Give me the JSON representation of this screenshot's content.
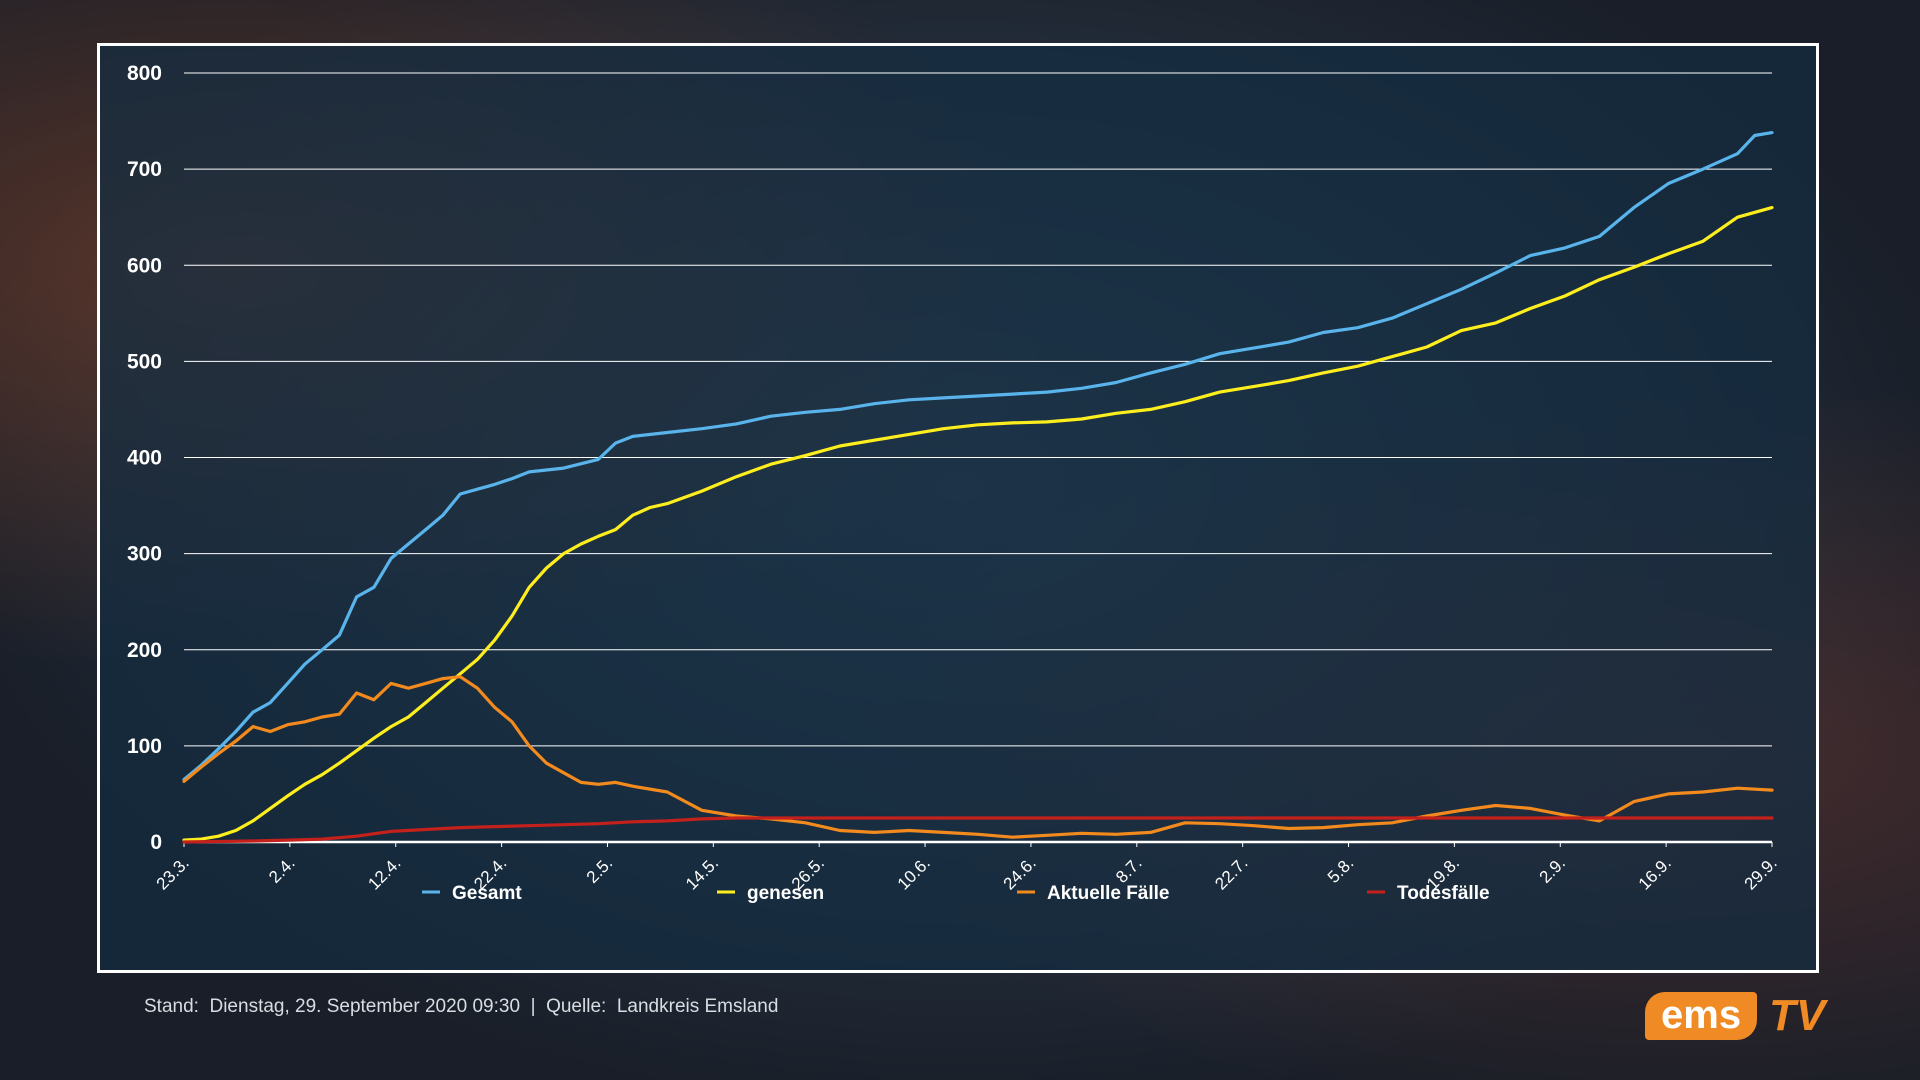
{
  "chart_data": {
    "type": "line",
    "title": "",
    "xlabel": "",
    "ylabel": "",
    "ylim": [
      0,
      800
    ],
    "y_ticks": [
      0,
      100,
      200,
      300,
      400,
      500,
      600,
      700,
      800
    ],
    "x_tick_labels": [
      "23.3.",
      "2.4.",
      "12.4.",
      "22.4.",
      "2.5.",
      "14.5.",
      "26.5.",
      "10.6.",
      "24.6.",
      "8.7.",
      "22.7.",
      "5.8.",
      "19.8.",
      "2.9.",
      "16.9.",
      "29.9."
    ],
    "grid": "horizontal",
    "legend_position": "bottom",
    "series": [
      {
        "name": "Gesamt",
        "color": "#5ab4ec",
        "values": [
          [
            0,
            65
          ],
          [
            0.5,
            80
          ],
          [
            1,
            97
          ],
          [
            1.5,
            115
          ],
          [
            2,
            135
          ],
          [
            2.5,
            145
          ],
          [
            3,
            165
          ],
          [
            3.5,
            185
          ],
          [
            4,
            200
          ],
          [
            4.5,
            215
          ],
          [
            5,
            255
          ],
          [
            5.5,
            265
          ],
          [
            6,
            295
          ],
          [
            6.5,
            310
          ],
          [
            7,
            325
          ],
          [
            7.5,
            340
          ],
          [
            8,
            362
          ],
          [
            8.5,
            367
          ],
          [
            9,
            372
          ],
          [
            9.5,
            378
          ],
          [
            10,
            385
          ],
          [
            11,
            389
          ],
          [
            12,
            398
          ],
          [
            12.5,
            415
          ],
          [
            13,
            422
          ],
          [
            14,
            426
          ],
          [
            15,
            430
          ],
          [
            16,
            435
          ],
          [
            17,
            443
          ],
          [
            18,
            447
          ],
          [
            19,
            450
          ],
          [
            20,
            456
          ],
          [
            21,
            460
          ],
          [
            22,
            462
          ],
          [
            23,
            464
          ],
          [
            24,
            466
          ],
          [
            25,
            468
          ],
          [
            26,
            472
          ],
          [
            27,
            478
          ],
          [
            28,
            488
          ],
          [
            29,
            497
          ],
          [
            30,
            508
          ],
          [
            31,
            514
          ],
          [
            32,
            520
          ],
          [
            33,
            530
          ],
          [
            34,
            535
          ],
          [
            35,
            545
          ],
          [
            36,
            560
          ],
          [
            37,
            575
          ],
          [
            38,
            592
          ],
          [
            39,
            610
          ],
          [
            40,
            618
          ],
          [
            41,
            630
          ],
          [
            42,
            660
          ],
          [
            43,
            685
          ],
          [
            44,
            700
          ],
          [
            45,
            716
          ],
          [
            45.5,
            735
          ],
          [
            46,
            738
          ]
        ]
      },
      {
        "name": "genesen",
        "color": "#ffee1e",
        "values": [
          [
            0,
            2
          ],
          [
            0.5,
            3
          ],
          [
            1,
            6
          ],
          [
            1.5,
            12
          ],
          [
            2,
            22
          ],
          [
            2.5,
            35
          ],
          [
            3,
            48
          ],
          [
            3.5,
            60
          ],
          [
            4,
            70
          ],
          [
            4.5,
            82
          ],
          [
            5,
            95
          ],
          [
            5.5,
            108
          ],
          [
            6,
            120
          ],
          [
            6.5,
            130
          ],
          [
            7,
            145
          ],
          [
            7.5,
            160
          ],
          [
            8,
            175
          ],
          [
            8.5,
            190
          ],
          [
            9,
            210
          ],
          [
            9.5,
            235
          ],
          [
            10,
            265
          ],
          [
            10.5,
            285
          ],
          [
            11,
            300
          ],
          [
            11.5,
            310
          ],
          [
            12,
            318
          ],
          [
            12.5,
            325
          ],
          [
            13,
            340
          ],
          [
            13.5,
            348
          ],
          [
            14,
            352
          ],
          [
            15,
            365
          ],
          [
            16,
            380
          ],
          [
            17,
            393
          ],
          [
            18,
            402
          ],
          [
            19,
            412
          ],
          [
            20,
            418
          ],
          [
            21,
            424
          ],
          [
            22,
            430
          ],
          [
            23,
            434
          ],
          [
            24,
            436
          ],
          [
            25,
            437
          ],
          [
            26,
            440
          ],
          [
            27,
            446
          ],
          [
            28,
            450
          ],
          [
            29,
            458
          ],
          [
            30,
            468
          ],
          [
            31,
            474
          ],
          [
            32,
            480
          ],
          [
            33,
            488
          ],
          [
            34,
            495
          ],
          [
            35,
            505
          ],
          [
            36,
            515
          ],
          [
            37,
            532
          ],
          [
            38,
            540
          ],
          [
            39,
            555
          ],
          [
            40,
            568
          ],
          [
            41,
            585
          ],
          [
            42,
            598
          ],
          [
            43,
            612
          ],
          [
            44,
            625
          ],
          [
            45,
            650
          ],
          [
            46,
            660
          ]
        ]
      },
      {
        "name": "Aktuelle Fälle",
        "color": "#f28a1e",
        "values": [
          [
            0,
            63
          ],
          [
            0.5,
            78
          ],
          [
            1,
            92
          ],
          [
            1.5,
            105
          ],
          [
            2,
            120
          ],
          [
            2.5,
            115
          ],
          [
            3,
            122
          ],
          [
            3.5,
            125
          ],
          [
            4,
            130
          ],
          [
            4.5,
            133
          ],
          [
            5,
            155
          ],
          [
            5.5,
            148
          ],
          [
            6,
            165
          ],
          [
            6.5,
            160
          ],
          [
            7,
            165
          ],
          [
            7.5,
            170
          ],
          [
            8,
            172
          ],
          [
            8.5,
            160
          ],
          [
            9,
            140
          ],
          [
            9.5,
            125
          ],
          [
            10,
            100
          ],
          [
            10.5,
            82
          ],
          [
            11,
            72
          ],
          [
            11.5,
            62
          ],
          [
            12,
            60
          ],
          [
            12.5,
            62
          ],
          [
            13,
            58
          ],
          [
            14,
            52
          ],
          [
            15,
            33
          ],
          [
            16,
            27
          ],
          [
            17,
            24
          ],
          [
            18,
            20
          ],
          [
            19,
            12
          ],
          [
            20,
            10
          ],
          [
            21,
            12
          ],
          [
            22,
            10
          ],
          [
            23,
            8
          ],
          [
            24,
            5
          ],
          [
            25,
            7
          ],
          [
            26,
            9
          ],
          [
            27,
            8
          ],
          [
            28,
            10
          ],
          [
            29,
            20
          ],
          [
            30,
            19
          ],
          [
            31,
            17
          ],
          [
            32,
            14
          ],
          [
            33,
            15
          ],
          [
            34,
            18
          ],
          [
            35,
            20
          ],
          [
            36,
            27
          ],
          [
            37,
            33
          ],
          [
            38,
            38
          ],
          [
            39,
            35
          ],
          [
            40,
            28
          ],
          [
            41,
            22
          ],
          [
            42,
            42
          ],
          [
            43,
            50
          ],
          [
            44,
            52
          ],
          [
            45,
            56
          ],
          [
            46,
            54
          ]
        ]
      },
      {
        "name": "Todesfälle",
        "color": "#c4201c",
        "values": [
          [
            0,
            0
          ],
          [
            2,
            1
          ],
          [
            3,
            2
          ],
          [
            4,
            3
          ],
          [
            5,
            6
          ],
          [
            6,
            11
          ],
          [
            7,
            13
          ],
          [
            8,
            15
          ],
          [
            9,
            16
          ],
          [
            10,
            17
          ],
          [
            11,
            18
          ],
          [
            12,
            19
          ],
          [
            13,
            21
          ],
          [
            14,
            22
          ],
          [
            15,
            24
          ],
          [
            16,
            25
          ],
          [
            46,
            25
          ]
        ]
      }
    ]
  },
  "footer": {
    "text": "Stand:  Dienstag, 29. September 2020 09:30  |  Quelle:  Landkreis Emsland"
  },
  "logo": {
    "part1": "ems",
    "part2": "TV"
  },
  "colors": {
    "accent": "#f08a24",
    "grid": "#ffffff"
  }
}
